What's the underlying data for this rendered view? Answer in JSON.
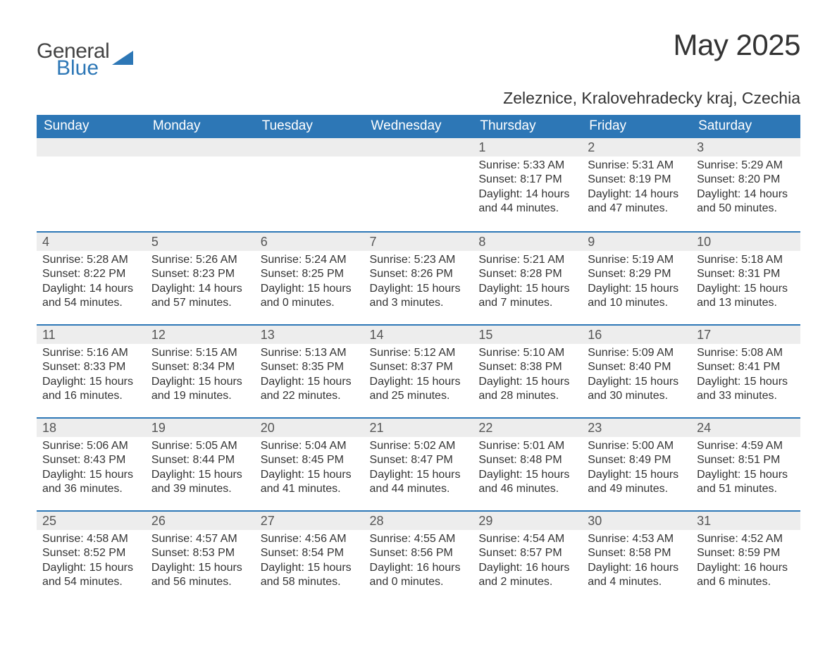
{
  "brand": {
    "general": "General",
    "blue": "Blue"
  },
  "title": "May 2025",
  "location": "Zeleznice, Kralovehradecky kraj, Czechia",
  "colors": {
    "header_bg": "#2d77b6",
    "header_fg": "#ffffff",
    "daynum_bg": "#ededed",
    "row_divider": "#2d77b6",
    "body_text": "#333333",
    "page_bg": "#ffffff"
  },
  "weekdays": [
    "Sunday",
    "Monday",
    "Tuesday",
    "Wednesday",
    "Thursday",
    "Friday",
    "Saturday"
  ],
  "weeks": [
    [
      null,
      null,
      null,
      null,
      {
        "n": "1",
        "sunrise": "5:33 AM",
        "sunset": "8:17 PM",
        "dl_h": 14,
        "dl_m": 44
      },
      {
        "n": "2",
        "sunrise": "5:31 AM",
        "sunset": "8:19 PM",
        "dl_h": 14,
        "dl_m": 47
      },
      {
        "n": "3",
        "sunrise": "5:29 AM",
        "sunset": "8:20 PM",
        "dl_h": 14,
        "dl_m": 50
      }
    ],
    [
      {
        "n": "4",
        "sunrise": "5:28 AM",
        "sunset": "8:22 PM",
        "dl_h": 14,
        "dl_m": 54
      },
      {
        "n": "5",
        "sunrise": "5:26 AM",
        "sunset": "8:23 PM",
        "dl_h": 14,
        "dl_m": 57
      },
      {
        "n": "6",
        "sunrise": "5:24 AM",
        "sunset": "8:25 PM",
        "dl_h": 15,
        "dl_m": 0
      },
      {
        "n": "7",
        "sunrise": "5:23 AM",
        "sunset": "8:26 PM",
        "dl_h": 15,
        "dl_m": 3
      },
      {
        "n": "8",
        "sunrise": "5:21 AM",
        "sunset": "8:28 PM",
        "dl_h": 15,
        "dl_m": 7
      },
      {
        "n": "9",
        "sunrise": "5:19 AM",
        "sunset": "8:29 PM",
        "dl_h": 15,
        "dl_m": 10
      },
      {
        "n": "10",
        "sunrise": "5:18 AM",
        "sunset": "8:31 PM",
        "dl_h": 15,
        "dl_m": 13
      }
    ],
    [
      {
        "n": "11",
        "sunrise": "5:16 AM",
        "sunset": "8:33 PM",
        "dl_h": 15,
        "dl_m": 16
      },
      {
        "n": "12",
        "sunrise": "5:15 AM",
        "sunset": "8:34 PM",
        "dl_h": 15,
        "dl_m": 19
      },
      {
        "n": "13",
        "sunrise": "5:13 AM",
        "sunset": "8:35 PM",
        "dl_h": 15,
        "dl_m": 22
      },
      {
        "n": "14",
        "sunrise": "5:12 AM",
        "sunset": "8:37 PM",
        "dl_h": 15,
        "dl_m": 25
      },
      {
        "n": "15",
        "sunrise": "5:10 AM",
        "sunset": "8:38 PM",
        "dl_h": 15,
        "dl_m": 28
      },
      {
        "n": "16",
        "sunrise": "5:09 AM",
        "sunset": "8:40 PM",
        "dl_h": 15,
        "dl_m": 30
      },
      {
        "n": "17",
        "sunrise": "5:08 AM",
        "sunset": "8:41 PM",
        "dl_h": 15,
        "dl_m": 33
      }
    ],
    [
      {
        "n": "18",
        "sunrise": "5:06 AM",
        "sunset": "8:43 PM",
        "dl_h": 15,
        "dl_m": 36
      },
      {
        "n": "19",
        "sunrise": "5:05 AM",
        "sunset": "8:44 PM",
        "dl_h": 15,
        "dl_m": 39
      },
      {
        "n": "20",
        "sunrise": "5:04 AM",
        "sunset": "8:45 PM",
        "dl_h": 15,
        "dl_m": 41
      },
      {
        "n": "21",
        "sunrise": "5:02 AM",
        "sunset": "8:47 PM",
        "dl_h": 15,
        "dl_m": 44
      },
      {
        "n": "22",
        "sunrise": "5:01 AM",
        "sunset": "8:48 PM",
        "dl_h": 15,
        "dl_m": 46
      },
      {
        "n": "23",
        "sunrise": "5:00 AM",
        "sunset": "8:49 PM",
        "dl_h": 15,
        "dl_m": 49
      },
      {
        "n": "24",
        "sunrise": "4:59 AM",
        "sunset": "8:51 PM",
        "dl_h": 15,
        "dl_m": 51
      }
    ],
    [
      {
        "n": "25",
        "sunrise": "4:58 AM",
        "sunset": "8:52 PM",
        "dl_h": 15,
        "dl_m": 54
      },
      {
        "n": "26",
        "sunrise": "4:57 AM",
        "sunset": "8:53 PM",
        "dl_h": 15,
        "dl_m": 56
      },
      {
        "n": "27",
        "sunrise": "4:56 AM",
        "sunset": "8:54 PM",
        "dl_h": 15,
        "dl_m": 58
      },
      {
        "n": "28",
        "sunrise": "4:55 AM",
        "sunset": "8:56 PM",
        "dl_h": 16,
        "dl_m": 0
      },
      {
        "n": "29",
        "sunrise": "4:54 AM",
        "sunset": "8:57 PM",
        "dl_h": 16,
        "dl_m": 2
      },
      {
        "n": "30",
        "sunrise": "4:53 AM",
        "sunset": "8:58 PM",
        "dl_h": 16,
        "dl_m": 4
      },
      {
        "n": "31",
        "sunrise": "4:52 AM",
        "sunset": "8:59 PM",
        "dl_h": 16,
        "dl_m": 6
      }
    ]
  ],
  "labels": {
    "sunrise": "Sunrise: ",
    "sunset": "Sunset: ",
    "daylight_prefix": "Daylight: ",
    "hours": " hours",
    "and": "and ",
    "minutes": " minutes."
  }
}
